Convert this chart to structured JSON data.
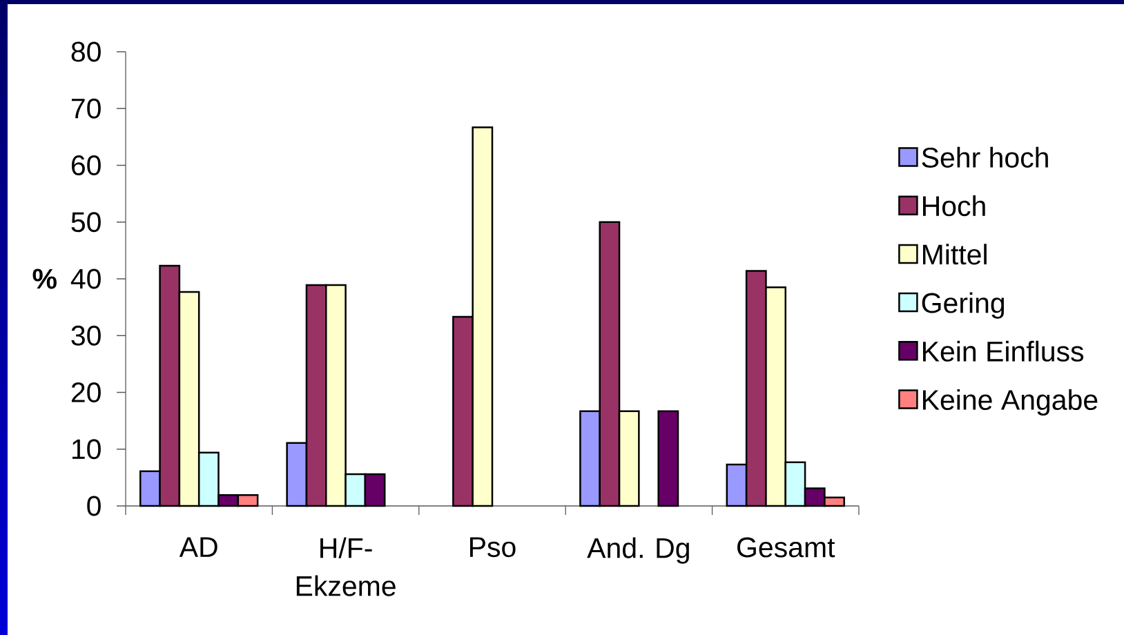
{
  "chart_data": {
    "type": "bar",
    "ylabel": "%",
    "categories": [
      "AD",
      "H/F-Ekzeme",
      "Pso",
      "And. Dg",
      "Gesamt"
    ],
    "series": [
      {
        "name": "Sehr hoch",
        "color": "#9999ff",
        "values": [
          6.1,
          11.1,
          null,
          16.7,
          7.3
        ]
      },
      {
        "name": "Hoch",
        "color": "#993366",
        "values": [
          42.3,
          38.9,
          33.3,
          50.0,
          41.4
        ]
      },
      {
        "name": "Mittel",
        "color": "#ffffcc",
        "values": [
          37.7,
          38.9,
          66.7,
          16.7,
          38.5
        ]
      },
      {
        "name": "Gering",
        "color": "#ccffff",
        "values": [
          9.4,
          5.6,
          null,
          null,
          7.7
        ]
      },
      {
        "name": "Kein Einfluss",
        "color": "#660066",
        "values": [
          1.9,
          5.6,
          null,
          16.7,
          3.1
        ]
      },
      {
        "name": "Keine Angabe",
        "color": "#ff8080",
        "values": [
          1.9,
          null,
          null,
          null,
          1.5
        ]
      }
    ],
    "ylim": [
      0,
      80
    ],
    "yticks": [
      0,
      10,
      20,
      30,
      40,
      50,
      60,
      70,
      80
    ],
    "legend": "right"
  }
}
